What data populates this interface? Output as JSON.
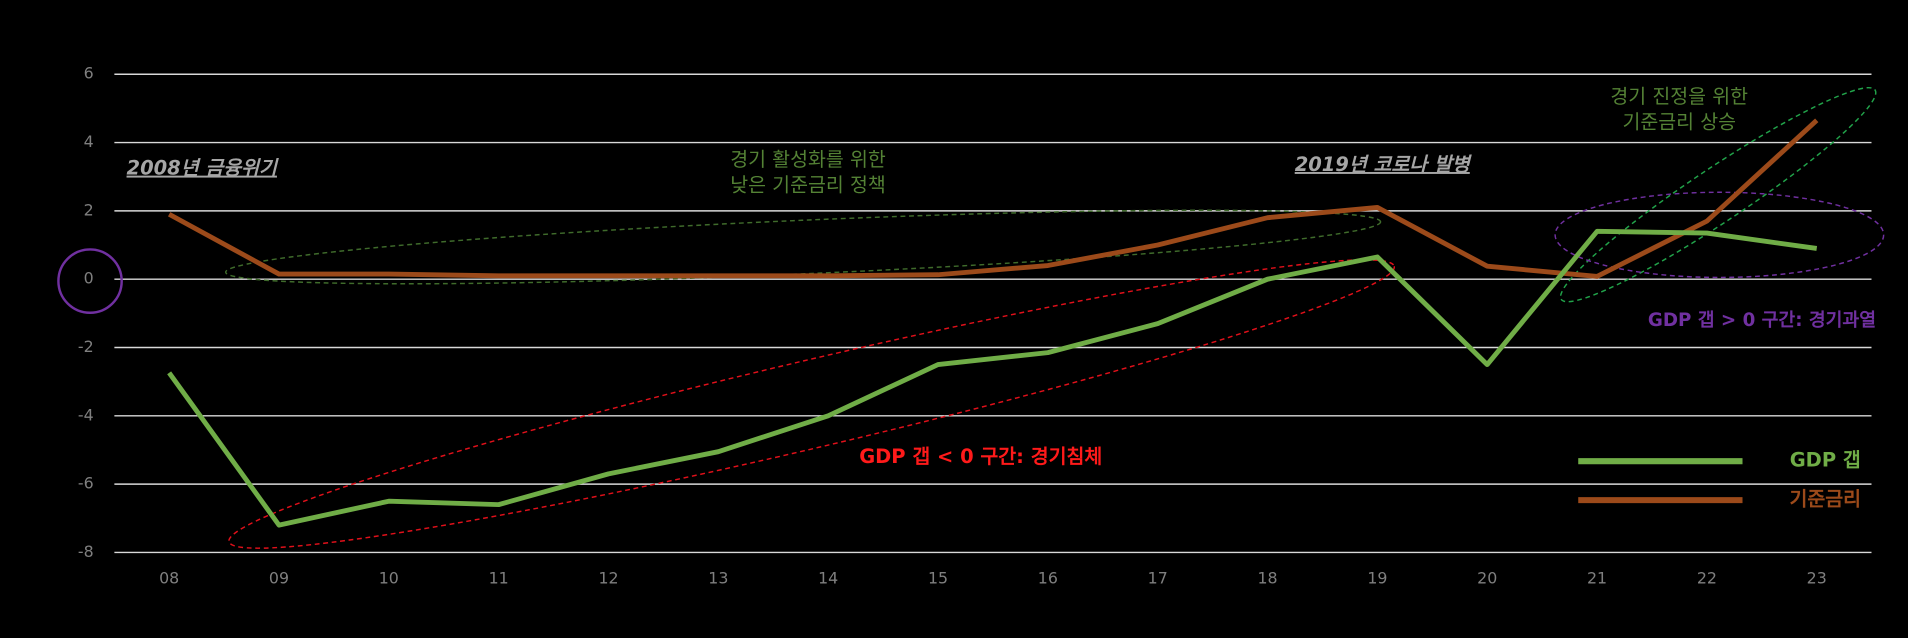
{
  "chart_data": {
    "type": "line",
    "categories": [
      "08",
      "09",
      "10",
      "11",
      "12",
      "13",
      "14",
      "15",
      "16",
      "17",
      "18",
      "19",
      "20",
      "21",
      "22",
      "23"
    ],
    "series": [
      {
        "name": "GDP 갭",
        "color": "#70ad47",
        "values": [
          -2.74,
          -7.2,
          -6.5,
          -6.6,
          -5.7,
          -5.05,
          -4.0,
          -2.5,
          -2.15,
          -1.3,
          0.0,
          0.65,
          -2.5,
          1.4,
          1.35,
          0.9
        ]
      },
      {
        "name": "기준금리",
        "color": "#9c4a1a",
        "values": [
          1.9,
          0.15,
          0.15,
          0.1,
          0.1,
          0.1,
          0.1,
          0.13,
          0.4,
          1.0,
          1.8,
          2.1,
          0.38,
          0.08,
          1.7,
          4.65
        ]
      }
    ],
    "ylim": [
      -8,
      6
    ],
    "yticks": [
      -8,
      -6,
      -4,
      -2,
      0,
      2,
      4,
      6
    ],
    "grid": true,
    "annotations": {
      "crisis": "2008년 금융위기",
      "covid": "2019년 코로나 발병",
      "low_rate": [
        "경기 활성화를 위한",
        "낮은 기준금리 정책"
      ],
      "raise_rate": [
        "경기 진정을 위한",
        "기준금리 상승"
      ],
      "recession": "GDP 갭 < 0 구간: 경기침체",
      "overheat": "GDP 갭 > 0 구간: 경기과열"
    }
  }
}
